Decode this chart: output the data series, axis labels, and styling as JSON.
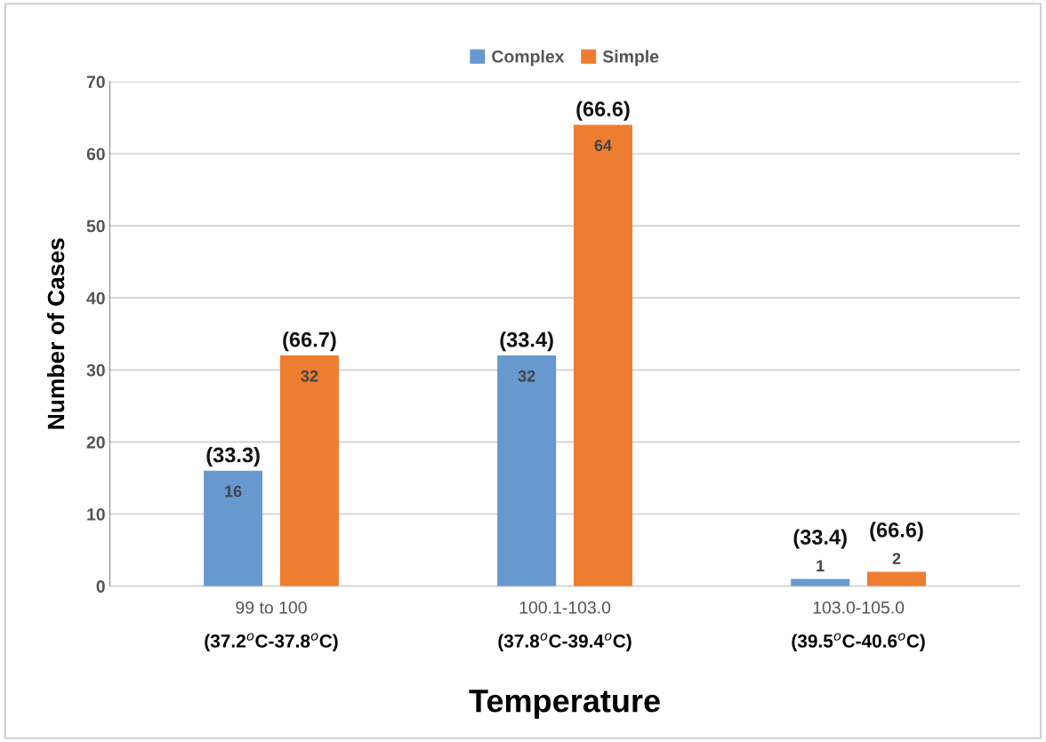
{
  "chart_data": {
    "type": "bar",
    "xlabel": "Temperature",
    "ylabel": "Number of Cases",
    "categories": [
      "99 to 100\n(37.2$^{o}$C-37.8$^{o}$C)",
      "100.1-103.0\n(37.8$^{o}$C-39.4$^{o}$C)",
      "103.0-105.0\n(39.5$^{o}$C-40.6$^{o}$C)"
    ],
    "series": [
      {
        "name": "Complex",
        "color": "#6799cf",
        "values": [
          16,
          32,
          1
        ]
      },
      {
        "name": "Simple",
        "color": "#ed7d31",
        "values": [
          32,
          64,
          2
        ]
      }
    ],
    "annotations": [
      "(33.3)",
      "(33.4)",
      "(33.4)",
      "(66.7)",
      "(66.6)",
      "(66.6)"
    ],
    "ylim": [
      0,
      70
    ],
    "yticks": [
      0,
      10,
      20,
      30,
      40,
      50,
      60,
      70
    ],
    "grid": "y",
    "legend": "top",
    "data_labels": true
  }
}
